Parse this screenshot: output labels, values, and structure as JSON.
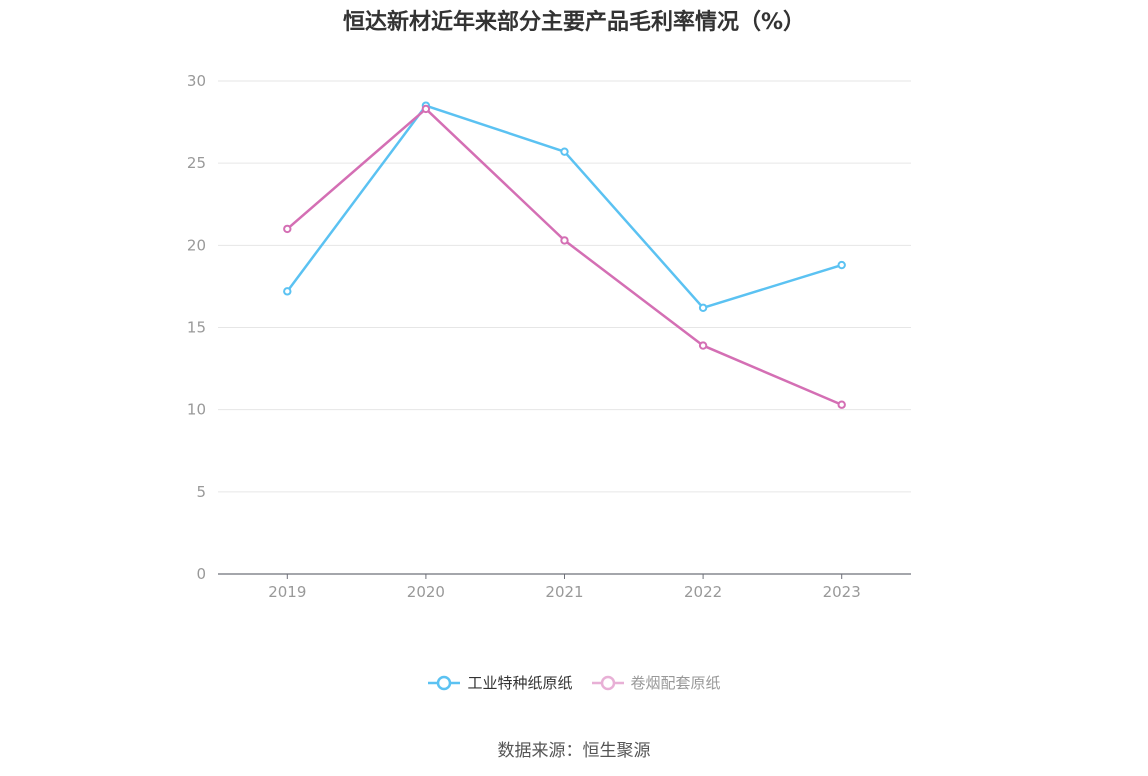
{
  "chart_data": {
    "type": "line",
    "title": "恒达新材近年来部分主要产品毛利率情况（%）",
    "categories": [
      "2019",
      "2020",
      "2021",
      "2022",
      "2023"
    ],
    "series": [
      {
        "name": "工业特种纸原纸",
        "values": [
          17.2,
          28.5,
          25.7,
          16.2,
          18.8
        ],
        "color": "#5bc2f2"
      },
      {
        "name": "卷烟配套原纸",
        "values": [
          21.0,
          28.3,
          20.3,
          13.9,
          10.3
        ],
        "color": "#d46fb4"
      }
    ],
    "ylim": [
      0,
      30
    ],
    "yticks": [
      0,
      5,
      10,
      15,
      20,
      25,
      30
    ],
    "grid": true,
    "legend_position": "bottom-center"
  },
  "legend": [
    {
      "label": "工业特种纸原纸",
      "color": "#5bc2f2"
    },
    {
      "label": "卷烟配套原纸",
      "color": "#e8b0d6"
    }
  ],
  "source_text": "数据来源：恒生聚源"
}
